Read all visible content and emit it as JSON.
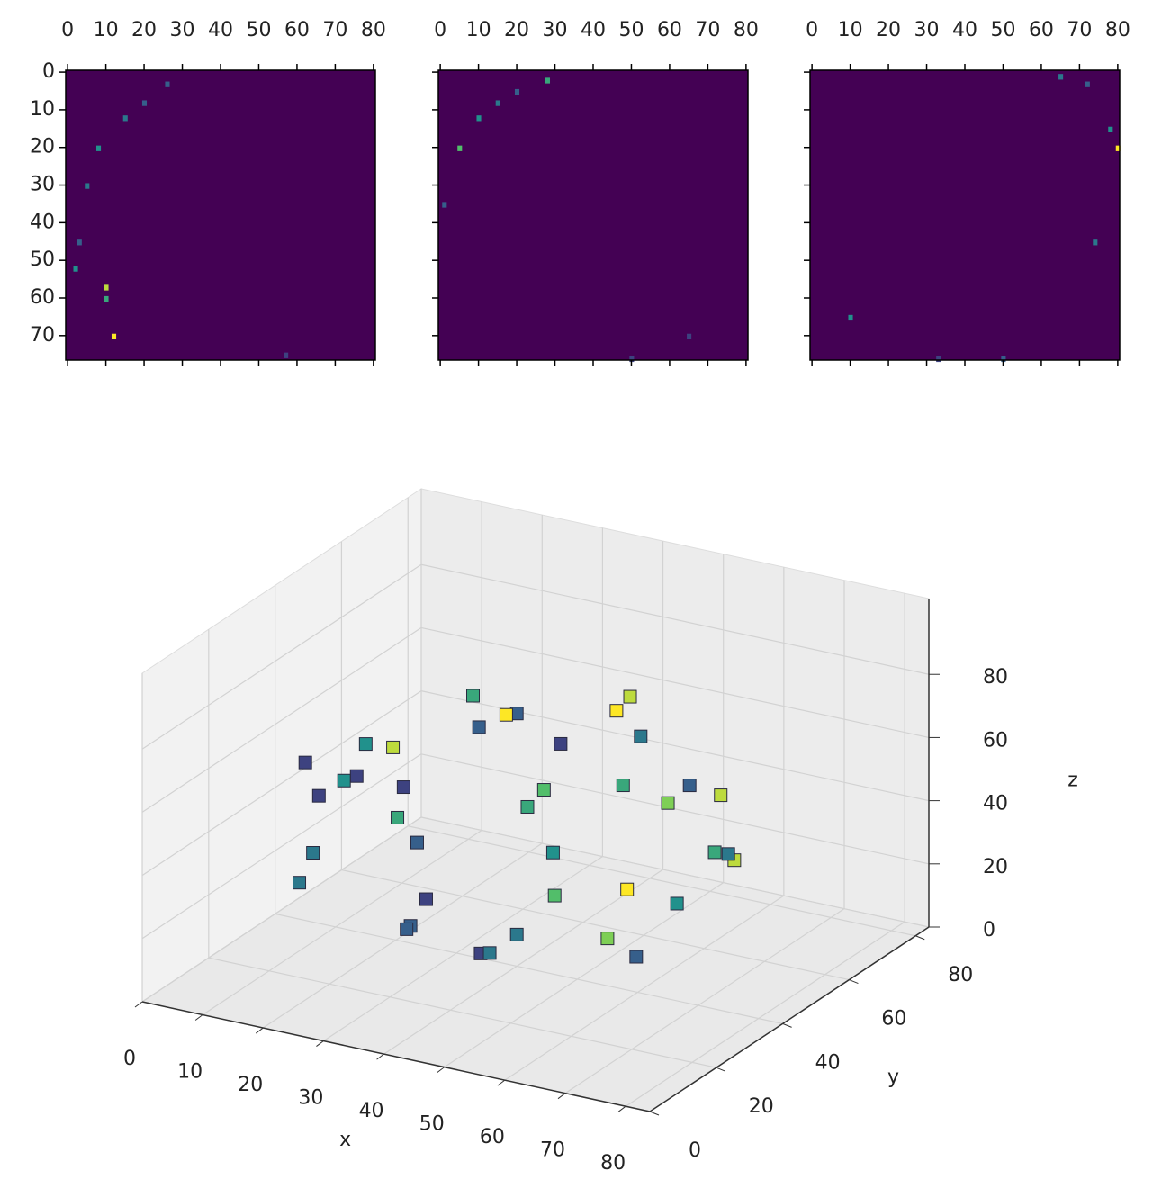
{
  "chart_data": [
    {
      "type": "heatmap",
      "xlim": [
        -0.5,
        80.5
      ],
      "ylim": [
        76.5,
        -0.5
      ],
      "xticks": [
        0,
        10,
        20,
        30,
        40,
        50,
        60,
        70,
        80
      ],
      "yticks": [
        0,
        10,
        20,
        30,
        40,
        50,
        60,
        70
      ],
      "show_yticklabels": true,
      "background": "#440154",
      "clim": [
        0,
        1
      ],
      "x": [
        10,
        12,
        8,
        5,
        3,
        15,
        20,
        2,
        10,
        26,
        57
      ],
      "y": [
        57,
        70,
        20,
        30,
        45,
        12,
        8,
        52,
        60,
        3,
        75
      ],
      "values": [
        0.9,
        1,
        0.5,
        0.4,
        0.3,
        0.4,
        0.3,
        0.5,
        0.6,
        0.3,
        0.2
      ]
    },
    {
      "type": "heatmap",
      "xlim": [
        -0.5,
        80.5
      ],
      "ylim": [
        76.5,
        -0.5
      ],
      "xticks": [
        0,
        10,
        20,
        30,
        40,
        50,
        60,
        70,
        80
      ],
      "yticks": [
        0,
        10,
        20,
        30,
        40,
        50,
        60,
        70
      ],
      "show_yticklabels": false,
      "background": "#440154",
      "clim": [
        0,
        1
      ],
      "x": [
        28,
        5,
        10,
        15,
        20,
        1,
        65,
        50
      ],
      "y": [
        2,
        20,
        12,
        8,
        5,
        35,
        70,
        76
      ],
      "values": [
        0.6,
        0.7,
        0.5,
        0.4,
        0.3,
        0.3,
        0.2,
        0.2
      ]
    },
    {
      "type": "heatmap",
      "xlim": [
        -0.5,
        80.5
      ],
      "ylim": [
        76.5,
        -0.5
      ],
      "xticks": [
        0,
        10,
        20,
        30,
        40,
        50,
        60,
        70,
        80
      ],
      "yticks": [
        0,
        10,
        20,
        30,
        40,
        50,
        60,
        70
      ],
      "show_yticklabels": false,
      "background": "#440154",
      "clim": [
        0,
        1
      ],
      "x": [
        80,
        78,
        65,
        72,
        74,
        10,
        50,
        33
      ],
      "y": [
        20,
        15,
        1,
        3,
        45,
        65,
        76,
        76
      ],
      "values": [
        1,
        0.5,
        0.4,
        0.3,
        0.4,
        0.5,
        0.3,
        0.2
      ]
    },
    {
      "type": "voxels",
      "xlabel": "x",
      "ylabel": "y",
      "zlabel": "z",
      "xlim": [
        0,
        84
      ],
      "ylim": [
        0,
        84
      ],
      "zlim": [
        0,
        104
      ],
      "clim": [
        0,
        1
      ],
      "xticks": [
        0,
        10,
        20,
        30,
        40,
        50,
        60,
        70,
        80
      ],
      "yticks": [
        0,
        20,
        40,
        60,
        80
      ],
      "zticks": [
        0,
        20,
        40,
        60,
        80
      ],
      "x": [
        40,
        30,
        50,
        25,
        55,
        15,
        65,
        40,
        40,
        10,
        70,
        20,
        60,
        20,
        60,
        8,
        72,
        15,
        65,
        40,
        40,
        25,
        55,
        40,
        30,
        50,
        35,
        45,
        12,
        68,
        28,
        52,
        45,
        35,
        18,
        62,
        30,
        50,
        75,
        5
      ],
      "y": [
        40,
        45,
        35,
        30,
        50,
        40,
        40,
        10,
        70,
        35,
        45,
        15,
        65,
        65,
        15,
        50,
        30,
        20,
        60,
        8,
        72,
        40,
        40,
        40,
        25,
        55,
        60,
        20,
        55,
        25,
        70,
        10,
        65,
        15,
        28,
        52,
        55,
        25,
        40,
        40
      ],
      "z": [
        80,
        78,
        78,
        70,
        72,
        60,
        62,
        60,
        60,
        45,
        45,
        45,
        45,
        50,
        48,
        40,
        40,
        30,
        30,
        35,
        35,
        15,
        15,
        10,
        18,
        18,
        20,
        20,
        25,
        25,
        30,
        30,
        70,
        72,
        58,
        58,
        65,
        65,
        50,
        50
      ],
      "values": [
        0.3,
        0.6,
        0.2,
        0.9,
        0.4,
        0.5,
        0.8,
        0.3,
        1,
        0.2,
        0.6,
        0.4,
        0.9,
        0.3,
        0.7,
        0.2,
        0.5,
        0.4,
        0.9,
        0.3,
        0.6,
        0.2,
        0.8,
        0.4,
        0.3,
        1,
        0.5,
        0.2,
        0.6,
        0.3,
        0.7,
        0.4,
        0.9,
        0.2,
        0.5,
        0.3,
        1,
        0.6,
        0.4,
        0.2
      ]
    }
  ]
}
